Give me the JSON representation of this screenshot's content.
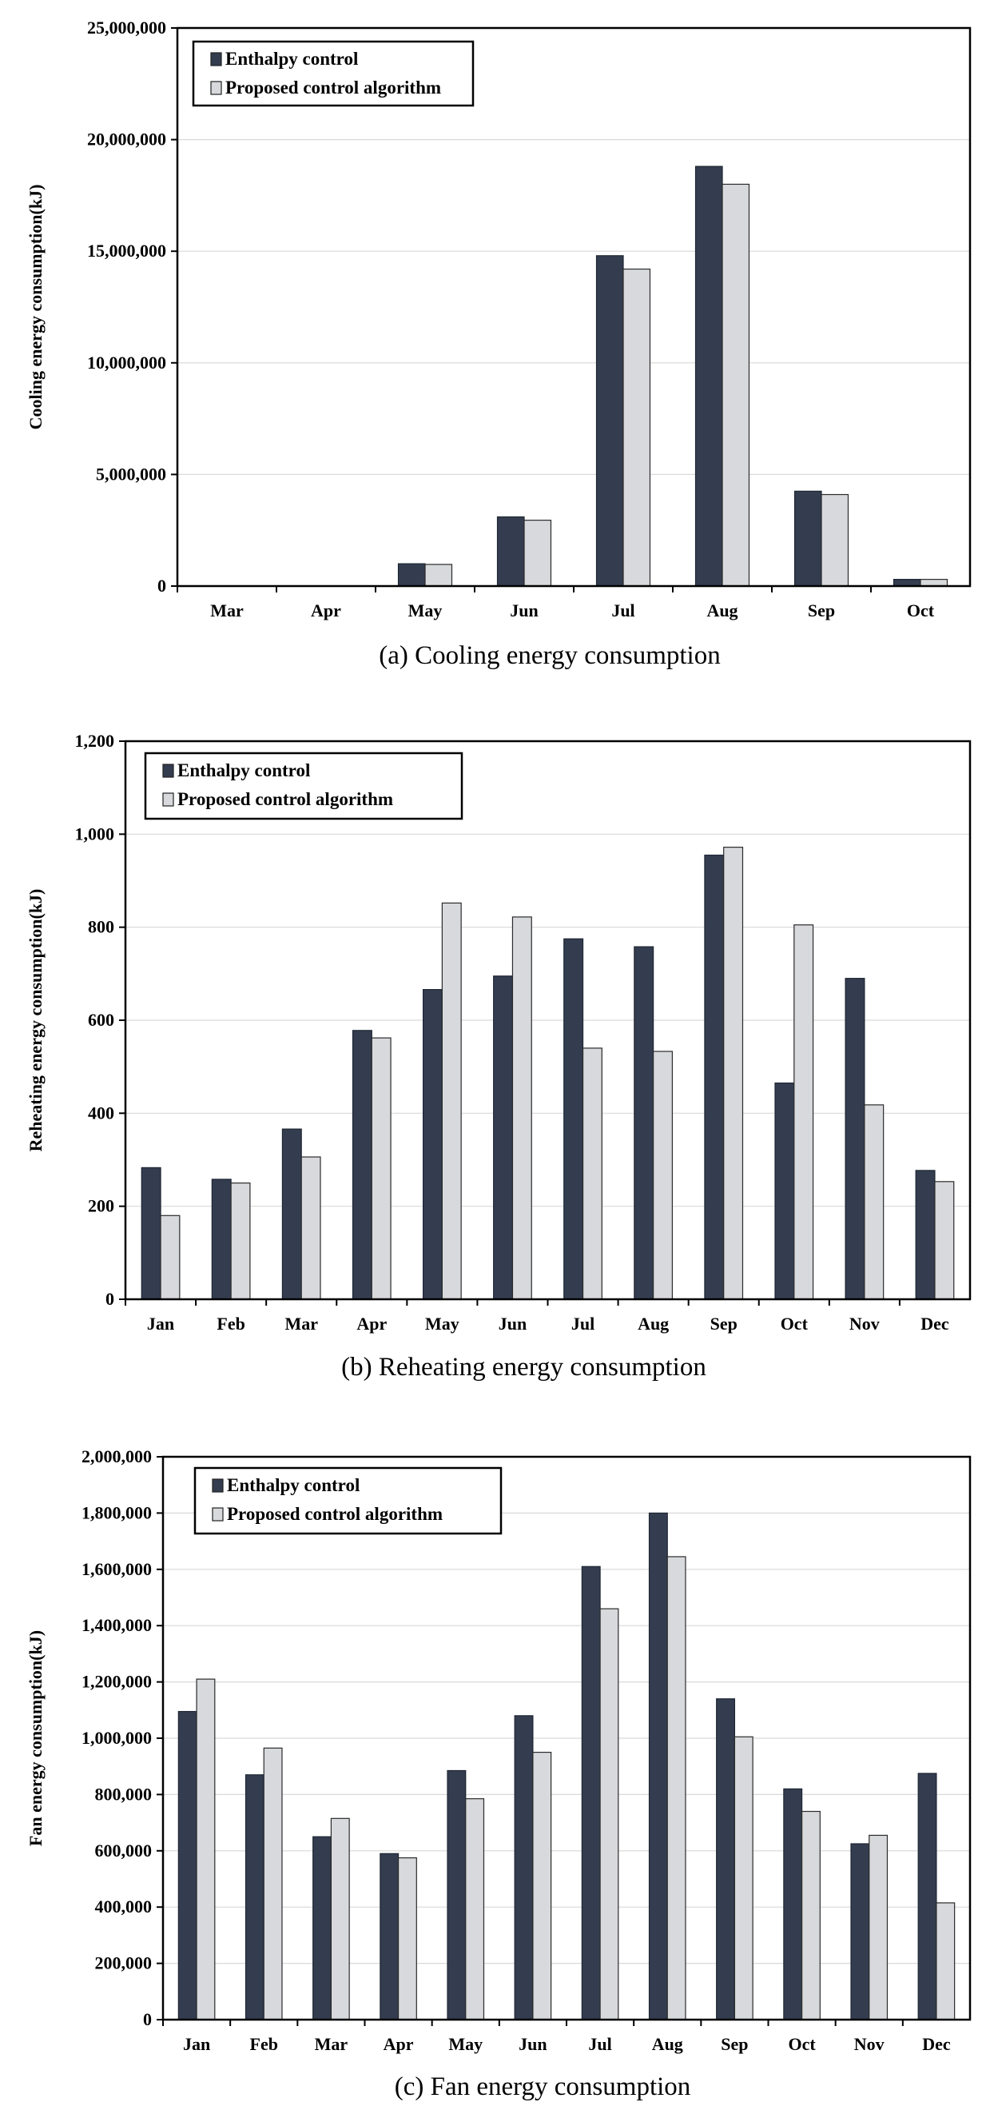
{
  "colors": {
    "enthalpy": "#333d4f",
    "proposed": "#d8d9dc",
    "grid": "#d9d9d9"
  },
  "chart_data": [
    {
      "type": "bar",
      "caption": "(a) Cooling energy consumption",
      "ylabel": "Cooling energy consumption(kJ)",
      "ylim": [
        0,
        25000000
      ],
      "yticks": [
        0,
        5000000,
        10000000,
        15000000,
        20000000,
        25000000
      ],
      "ytick_labels": [
        "0",
        "5,000,000",
        "10,000,000",
        "15,000,000",
        "20,000,000",
        "25,000,000"
      ],
      "categories": [
        "Mar",
        "Apr",
        "May",
        "Jun",
        "Jul",
        "Aug",
        "Sep",
        "Oct"
      ],
      "legend": {
        "position": "top-left"
      },
      "series": [
        {
          "name": "Enthalpy control",
          "values": [
            0,
            0,
            1000000,
            3100000,
            14800000,
            18800000,
            4250000,
            300000
          ]
        },
        {
          "name": "Proposed control algorithm",
          "values": [
            0,
            0,
            970000,
            2950000,
            14200000,
            18000000,
            4100000,
            300000
          ]
        }
      ]
    },
    {
      "type": "bar",
      "caption": "(b) Reheating energy consumption",
      "ylabel": "Reheating energy consumption(kJ)",
      "ylim": [
        0,
        1200
      ],
      "yticks": [
        0,
        200,
        400,
        600,
        800,
        1000,
        1200
      ],
      "ytick_labels": [
        "0",
        "200",
        "400",
        "600",
        "800",
        "1,000",
        "1,200"
      ],
      "categories": [
        "Jan",
        "Feb",
        "Mar",
        "Apr",
        "May",
        "Jun",
        "Jul",
        "Aug",
        "Sep",
        "Oct",
        "Nov",
        "Dec"
      ],
      "legend": {
        "position": "top-left"
      },
      "series": [
        {
          "name": "Enthalpy control",
          "values": [
            283,
            258,
            366,
            578,
            666,
            695,
            775,
            758,
            955,
            465,
            690,
            277
          ]
        },
        {
          "name": "Proposed control algorithm",
          "values": [
            180,
            250,
            306,
            562,
            852,
            822,
            540,
            533,
            972,
            805,
            418,
            253
          ]
        }
      ]
    },
    {
      "type": "bar",
      "caption": "(c) Fan energy consumption",
      "ylabel": "Fan energy consumption(kJ)",
      "ylim": [
        0,
        2000000
      ],
      "yticks": [
        0,
        200000,
        400000,
        600000,
        800000,
        1000000,
        1200000,
        1400000,
        1600000,
        1800000,
        2000000
      ],
      "ytick_labels": [
        "0",
        "200,000",
        "400,000",
        "600,000",
        "800,000",
        "1,000,000",
        "1,200,000",
        "1,400,000",
        "1,600,000",
        "1,800,000",
        "2,000,000"
      ],
      "categories": [
        "Jan",
        "Feb",
        "Mar",
        "Apr",
        "May",
        "Jun",
        "Jul",
        "Aug",
        "Sep",
        "Oct",
        "Nov",
        "Dec"
      ],
      "legend": {
        "position": "top-left"
      },
      "series": [
        {
          "name": "Enthalpy control",
          "values": [
            1095000,
            870000,
            650000,
            590000,
            885000,
            1080000,
            1610000,
            1800000,
            1140000,
            820000,
            625000,
            875000
          ]
        },
        {
          "name": "Proposed control algorithm",
          "values": [
            1210000,
            965000,
            715000,
            575000,
            785000,
            950000,
            1460000,
            1645000,
            1005000,
            740000,
            655000,
            415000
          ]
        }
      ]
    }
  ]
}
